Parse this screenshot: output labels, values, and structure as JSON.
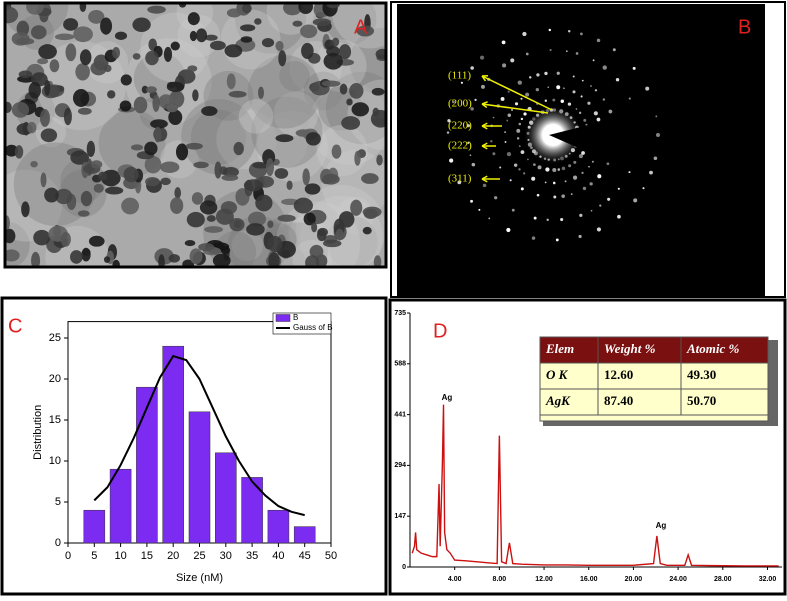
{
  "panels": {
    "a": {
      "label": "A"
    },
    "b": {
      "label": "B",
      "annotations": [
        "(111)",
        "(200)",
        "(220)",
        "(222)",
        "(311)"
      ]
    }
  },
  "chart_data": [
    {
      "type": "bar",
      "label": "C",
      "x_label": "Size (nM)",
      "y_label": "Distribution",
      "series": [
        {
          "name": "B",
          "type": "bar",
          "color": "#7b2cf0",
          "x": [
            5,
            10,
            15,
            20,
            25,
            30,
            35,
            40,
            45
          ],
          "values": [
            4,
            9,
            19,
            24,
            16,
            11,
            8,
            4,
            2
          ]
        },
        {
          "name": "Gauss of B",
          "type": "line",
          "color": "#000000",
          "x": [
            5,
            7.5,
            10,
            12.5,
            15,
            17.5,
            20,
            22.5,
            25,
            27.5,
            30,
            32.5,
            35,
            37.5,
            40,
            42.5,
            45
          ],
          "values": [
            5.2,
            6.8,
            9.5,
            12.8,
            16.5,
            20.2,
            22.8,
            22.3,
            20,
            16.5,
            13,
            10,
            7.5,
            5.8,
            4.5,
            3.8,
            3.4
          ]
        }
      ],
      "xlim": [
        0,
        50
      ],
      "xticks": [
        0,
        5,
        10,
        15,
        20,
        25,
        30,
        35,
        40,
        45,
        50
      ],
      "ylim": [
        0,
        27
      ],
      "yticks": [
        0,
        5,
        10,
        15,
        20,
        25
      ],
      "legend": "top-right"
    },
    {
      "type": "line",
      "label": "D",
      "color": "#cc1111",
      "x": [
        0.2,
        0.4,
        0.5,
        0.6,
        0.8,
        1.0,
        1.5,
        2.0,
        2.4,
        2.6,
        2.7,
        2.9,
        3.0,
        3.1,
        3.3,
        3.6,
        4.0,
        5.0,
        6.0,
        7.0,
        7.8,
        8.0,
        8.2,
        8.6,
        8.9,
        9.2,
        10,
        12,
        14,
        16,
        18,
        20,
        21.8,
        22.1,
        22.4,
        23,
        24.6,
        24.9,
        25.2,
        27,
        30,
        33
      ],
      "values": [
        40,
        60,
        100,
        50,
        45,
        40,
        35,
        30,
        30,
        240,
        60,
        300,
        470,
        100,
        50,
        40,
        20,
        18,
        15,
        12,
        10,
        380,
        15,
        10,
        70,
        10,
        8,
        6,
        6,
        5,
        5,
        5,
        10,
        90,
        10,
        5,
        5,
        35,
        5,
        4,
        3,
        3
      ],
      "annotations": [
        "Ag",
        "Ag"
      ],
      "xlim": [
        0,
        33.3
      ],
      "xticks": [
        {
          "value": 4,
          "label": "4.00"
        },
        {
          "value": 8,
          "label": "8.00"
        },
        {
          "value": 12,
          "label": "12.00"
        },
        {
          "value": 16,
          "label": "16.00"
        },
        {
          "value": 20,
          "label": "20.00"
        },
        {
          "value": 24,
          "label": "24.00"
        },
        {
          "value": 28,
          "label": "28.00"
        },
        {
          "value": 32,
          "label": "32.00"
        }
      ],
      "ylim": [
        0,
        735
      ],
      "yticks": [
        0,
        147,
        294,
        441,
        588,
        735
      ],
      "table": {
        "header": [
          "Elem",
          "Weight %",
          "Atomic %"
        ],
        "rows": [
          [
            "O K",
            "12.60",
            "49.30"
          ],
          [
            "AgK",
            "87.40",
            "50.70"
          ]
        ]
      }
    }
  ]
}
